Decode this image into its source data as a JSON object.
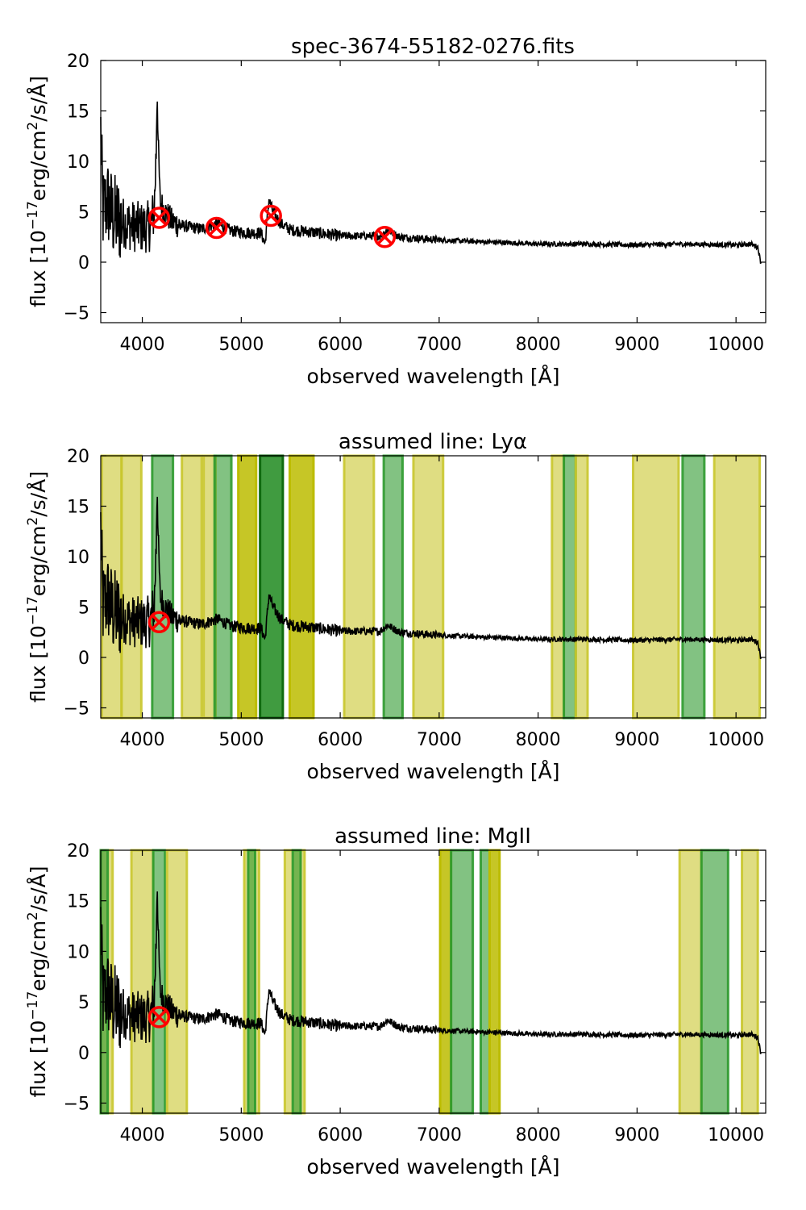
{
  "chart_data": [
    {
      "type": "line",
      "title": "spec-3674-55182-0276.fits",
      "xlabel": "observed wavelength [Å]",
      "ylabel_main": "flux [10",
      "ylabel_exp": "−17",
      "ylabel_rest": "erg/cm",
      "ylabel_sq": "2",
      "ylabel_tail": "/s/Å]",
      "xlim": [
        3580,
        10300
      ],
      "ylim": [
        -6,
        20
      ],
      "xticks": [
        4000,
        5000,
        6000,
        7000,
        8000,
        9000,
        10000
      ],
      "yticks": [
        -5,
        0,
        5,
        10,
        15,
        20
      ],
      "markers": [
        {
          "x": 4170,
          "y": 4.4
        },
        {
          "x": 4750,
          "y": 3.4
        },
        {
          "x": 5300,
          "y": 4.6
        },
        {
          "x": 6450,
          "y": 2.5
        }
      ],
      "bands": []
    },
    {
      "type": "line",
      "title": "assumed line: Lyα",
      "xlabel": "observed wavelength [Å]",
      "ylabel_main": "flux [10",
      "ylabel_exp": "−17",
      "ylabel_rest": "erg/cm",
      "ylabel_sq": "2",
      "ylabel_tail": "/s/Å]",
      "xlim": [
        3580,
        10300
      ],
      "ylim": [
        -6,
        20
      ],
      "xticks": [
        4000,
        5000,
        6000,
        7000,
        8000,
        9000,
        10000
      ],
      "yticks": [
        -5,
        0,
        5,
        10,
        15,
        20
      ],
      "markers": [
        {
          "x": 4170,
          "y": 3.5
        }
      ],
      "bands": [
        {
          "x0": 3590,
          "x1": 3790,
          "kind": "yellow"
        },
        {
          "x0": 3790,
          "x1": 3990,
          "kind": "yellow"
        },
        {
          "x0": 4100,
          "x1": 4310,
          "kind": "green"
        },
        {
          "x0": 4400,
          "x1": 4600,
          "kind": "yellow"
        },
        {
          "x0": 4620,
          "x1": 4740,
          "kind": "yellow"
        },
        {
          "x0": 4730,
          "x1": 4900,
          "kind": "green"
        },
        {
          "x0": 4970,
          "x1": 5150,
          "kind": "olive"
        },
        {
          "x0": 5190,
          "x1": 5420,
          "kind": "darkgreen"
        },
        {
          "x0": 5490,
          "x1": 5730,
          "kind": "olive"
        },
        {
          "x0": 6040,
          "x1": 6340,
          "kind": "yellow"
        },
        {
          "x0": 6440,
          "x1": 6630,
          "kind": "green"
        },
        {
          "x0": 6740,
          "x1": 7040,
          "kind": "yellow"
        },
        {
          "x0": 8140,
          "x1": 8260,
          "kind": "yellow"
        },
        {
          "x0": 8260,
          "x1": 8380,
          "kind": "green"
        },
        {
          "x0": 8380,
          "x1": 8500,
          "kind": "yellow"
        },
        {
          "x0": 8960,
          "x1": 9420,
          "kind": "yellow"
        },
        {
          "x0": 9460,
          "x1": 9680,
          "kind": "green"
        },
        {
          "x0": 9780,
          "x1": 10240,
          "kind": "yellow"
        }
      ]
    },
    {
      "type": "line",
      "title": "assumed line: MgII",
      "xlabel": "observed wavelength [Å]",
      "ylabel_main": "flux [10",
      "ylabel_exp": "−17",
      "ylabel_rest": "erg/cm",
      "ylabel_sq": "2",
      "ylabel_tail": "/s/Å]",
      "xlim": [
        3580,
        10300
      ],
      "ylim": [
        -6,
        20
      ],
      "xticks": [
        4000,
        5000,
        6000,
        7000,
        8000,
        9000,
        10000
      ],
      "yticks": [
        -5,
        0,
        5,
        10,
        15,
        20
      ],
      "markers": [
        {
          "x": 4170,
          "y": 3.5
        }
      ],
      "bands": [
        {
          "x0": 3580,
          "x1": 3700,
          "kind": "yellow"
        },
        {
          "x0": 3580,
          "x1": 3650,
          "kind": "green"
        },
        {
          "x0": 3890,
          "x1": 4110,
          "kind": "yellow"
        },
        {
          "x0": 4110,
          "x1": 4230,
          "kind": "green"
        },
        {
          "x0": 4250,
          "x1": 4450,
          "kind": "yellow"
        },
        {
          "x0": 5030,
          "x1": 5180,
          "kind": "yellow"
        },
        {
          "x0": 5070,
          "x1": 5140,
          "kind": "green"
        },
        {
          "x0": 5440,
          "x1": 5640,
          "kind": "yellow"
        },
        {
          "x0": 5520,
          "x1": 5600,
          "kind": "green"
        },
        {
          "x0": 7010,
          "x1": 7120,
          "kind": "olive"
        },
        {
          "x0": 7120,
          "x1": 7340,
          "kind": "green"
        },
        {
          "x0": 7420,
          "x1": 7510,
          "kind": "green"
        },
        {
          "x0": 7510,
          "x1": 7610,
          "kind": "olive"
        },
        {
          "x0": 9430,
          "x1": 9650,
          "kind": "yellow"
        },
        {
          "x0": 9650,
          "x1": 9920,
          "kind": "green"
        },
        {
          "x0": 10060,
          "x1": 10220,
          "kind": "yellow"
        }
      ]
    }
  ],
  "spectrum": {
    "color": "#000000",
    "anchors": [
      [
        3580,
        13
      ],
      [
        3600,
        5
      ],
      [
        3650,
        6
      ],
      [
        3700,
        4.5
      ],
      [
        3800,
        4
      ],
      [
        3900,
        3.6
      ],
      [
        4000,
        3.4
      ],
      [
        4080,
        3.6
      ],
      [
        4120,
        5
      ],
      [
        4140,
        11
      ],
      [
        4150,
        17.5
      ],
      [
        4160,
        12
      ],
      [
        4180,
        6
      ],
      [
        4230,
        5
      ],
      [
        4300,
        4
      ],
      [
        4400,
        3.6
      ],
      [
        4600,
        3.3
      ],
      [
        4760,
        3.8
      ],
      [
        4900,
        3.1
      ],
      [
        5100,
        2.9
      ],
      [
        5200,
        2.9
      ],
      [
        5240,
        1.8
      ],
      [
        5280,
        6.2
      ],
      [
        5320,
        5
      ],
      [
        5400,
        3.8
      ],
      [
        5500,
        3.2
      ],
      [
        5700,
        3.0
      ],
      [
        6000,
        2.6
      ],
      [
        6400,
        2.6
      ],
      [
        6480,
        3.2
      ],
      [
        6600,
        2.5
      ],
      [
        7000,
        2.2
      ],
      [
        7500,
        2.0
      ],
      [
        8000,
        1.8
      ],
      [
        8500,
        1.8
      ],
      [
        9000,
        1.7
      ],
      [
        9500,
        1.8
      ],
      [
        10000,
        1.7
      ],
      [
        10150,
        1.8
      ],
      [
        10220,
        1.5
      ],
      [
        10250,
        0
      ]
    ]
  },
  "colors": {
    "yellow": "#c9c62e",
    "olive": "#bcbc00",
    "green": "#2e9a2e",
    "darkgreen": "#1f8a1f",
    "marker": "#ff0000"
  }
}
